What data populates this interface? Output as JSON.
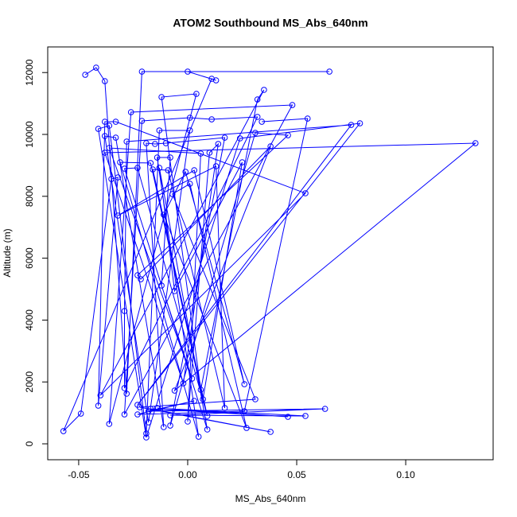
{
  "chart_data": {
    "type": "line",
    "marker": "circle",
    "title": "ATOM2 Southbound MS_Abs_640nm",
    "x_label": "MS_Abs_640nm",
    "y_label": "Altitude (m)",
    "color": "#0000ff",
    "grid": false,
    "xlim": [
      -0.0642,
      0.1401
    ],
    "ylim": [
      -514,
      12828
    ],
    "xticks": [
      -0.05,
      {
        "value": 0,
        "label": "0.00"
      },
      0.05,
      {
        "value": 0.1,
        "label": "0.10"
      }
    ],
    "yticks": [
      0,
      2000,
      4000,
      6000,
      8000,
      10000,
      12000
    ],
    "x": [
      -0.047,
      -0.042,
      -0.038,
      -0.028,
      -0.021,
      0.065,
      0.0,
      0.013,
      0.011,
      -0.057,
      -0.049,
      -0.035,
      -0.032,
      -0.041,
      -0.038,
      -0.033,
      0.054,
      -0.04,
      0.035,
      0.032,
      0.006,
      -0.012,
      0.004,
      -0.036,
      -0.026,
      0.048,
      -0.029,
      -0.021,
      0.001,
      0.011,
      0.032,
      -0.029,
      -0.029,
      -0.028,
      0.075,
      -0.023,
      0.079,
      0.024,
      -0.019,
      -0.041,
      -0.036,
      -0.019,
      -0.013,
      0.001,
      -0.018,
      -0.038,
      -0.033,
      -0.011,
      -0.019,
      -0.015,
      -0.01,
      0.017,
      -0.008,
      0.031,
      0.046,
      -0.023,
      -0.0215,
      0.038,
      -0.006,
      0.132,
      -0.038,
      -0.002,
      0.014,
      0.01,
      0.0,
      0.006,
      -0.036,
      0.002,
      -0.012,
      -0.008,
      -0.014,
      0.005,
      -0.031,
      -0.017,
      0.007,
      0.025,
      -0.006,
      -0.013,
      0.009,
      -0.029,
      -0.023,
      0.009,
      -0.016,
      -0.009,
      0.017,
      0.013,
      -0.032,
      0.003,
      0.026,
      -0.001,
      -0.011,
      0.027,
      0.001,
      -0.007,
      0.031,
      -0.022,
      0.038,
      -0.017,
      0.046,
      -0.014,
      0.054,
      -0.008,
      0.063,
      -0.018,
      0.003,
      -0.023,
      0.026,
      0.055,
      0.034
    ],
    "values": [
      11928,
      12159,
      11722,
      1620,
      12031,
      12031,
      12031,
      11748,
      11799,
      411,
      977,
      8560,
      8612,
      1234,
      10411,
      10411,
      8098,
      1568,
      11440,
      11131,
      1748,
      11208,
      11311,
      643,
      10720,
      10951,
      951,
      10437,
      10540,
      10488,
      10566,
      1800,
      4293,
      9769,
      10308,
      1260,
      10360,
      9872,
      206,
      10180,
      10283,
      334,
      10129,
      10129,
      694,
      9949,
      9897,
      540,
      9717,
      9692,
      9717,
      9897,
      591,
      10051,
      9974,
      5450,
      5321,
      9614,
      1722,
      9717,
      9409,
      1954,
      9692,
      9409,
      720,
      9383,
      9563,
      2108,
      5116,
      9254,
      9254,
      231,
      9100,
      9075,
      1440,
      9100,
      4936,
      8920,
      463,
      8895,
      8920,
      900,
      8869,
      8843,
      1157,
      8972,
      7378,
      8843,
      1928,
      8792,
      7404,
      514,
      8406,
      8072,
      1440,
      1183,
      386,
      1131,
      874,
      1157,
      900,
      925,
      1131,
      1054,
      1388,
      951,
      1054,
      10514,
      10411
    ]
  }
}
